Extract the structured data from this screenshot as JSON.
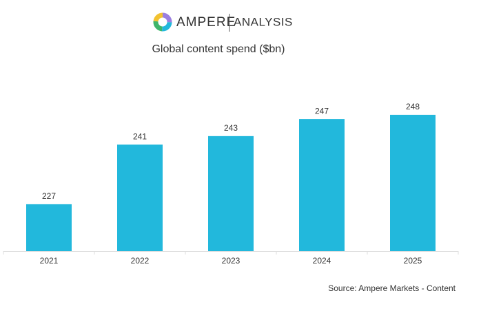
{
  "logo": {
    "brand": "AMPERE",
    "suffix": "ANALYSIS"
  },
  "chart_data": {
    "type": "bar",
    "title": "Global content spend ($bn)",
    "categories": [
      "2021",
      "2022",
      "2023",
      "2024",
      "2025"
    ],
    "values": [
      227,
      241,
      243,
      247,
      248
    ],
    "color": "#22b8dc",
    "ylim": [
      216,
      258
    ],
    "source": "Source: Ampere Markets - Content"
  }
}
